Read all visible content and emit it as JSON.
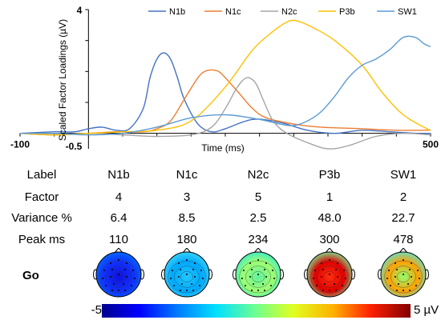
{
  "chart_data": {
    "type": "line",
    "ylabel": "Scaled Factor Loadings (µV)",
    "xlabel": "Time (ms)",
    "xlim": [
      -100,
      500
    ],
    "ylim": [
      -0.5,
      4
    ],
    "y_tick_labels": [
      "4",
      "-0.5"
    ],
    "x_tick_labels": [
      "-100",
      "500"
    ],
    "legend_position": "top",
    "series": [
      {
        "name": "N1b",
        "color": "#4472c4",
        "x": [
          -100,
          -50,
          -20,
          0,
          20,
          40,
          60,
          80,
          90,
          100,
          110,
          120,
          130,
          140,
          160,
          180,
          200,
          240,
          280,
          320,
          360,
          400,
          440,
          480,
          500
        ],
        "y": [
          0.0,
          0.05,
          0.05,
          0.15,
          0.2,
          0.1,
          0.15,
          0.8,
          1.8,
          2.4,
          2.6,
          2.4,
          1.8,
          1.1,
          0.3,
          0.05,
          0.15,
          0.45,
          0.35,
          0.1,
          0.0,
          0.1,
          0.05,
          0.0,
          0.0
        ]
      },
      {
        "name": "N1c",
        "color": "#ed7d31",
        "x": [
          -100,
          -50,
          0,
          40,
          80,
          100,
          120,
          140,
          160,
          170,
          180,
          190,
          200,
          220,
          240,
          260,
          300,
          340,
          400,
          450,
          500
        ],
        "y": [
          0.0,
          -0.05,
          0.0,
          0.05,
          0.05,
          0.15,
          0.4,
          1.1,
          1.8,
          2.0,
          2.05,
          2.0,
          1.8,
          1.3,
          0.8,
          0.5,
          0.3,
          0.2,
          0.15,
          0.1,
          0.1
        ]
      },
      {
        "name": "N2c",
        "color": "#a5a5a5",
        "x": [
          -100,
          -50,
          0,
          50,
          100,
          150,
          180,
          200,
          215,
          225,
          234,
          245,
          255,
          270,
          290,
          320,
          350,
          380,
          420,
          460,
          500
        ],
        "y": [
          0.0,
          -0.05,
          0.0,
          -0.05,
          -0.1,
          -0.05,
          0.2,
          0.8,
          1.4,
          1.7,
          1.8,
          1.6,
          1.1,
          0.4,
          0.0,
          -0.3,
          -0.5,
          -0.4,
          -0.1,
          0.0,
          -0.05
        ]
      },
      {
        "name": "P3b",
        "color": "#ffc000",
        "x": [
          -100,
          -50,
          0,
          50,
          100,
          150,
          200,
          240,
          270,
          290,
          300,
          310,
          330,
          360,
          400,
          430,
          460,
          490,
          500
        ],
        "y": [
          0.0,
          -0.05,
          0.0,
          0.05,
          0.1,
          0.4,
          1.5,
          2.7,
          3.3,
          3.6,
          3.65,
          3.6,
          3.4,
          3.0,
          2.2,
          1.3,
          0.6,
          0.2,
          0.1
        ]
      },
      {
        "name": "SW1",
        "color": "#5b9bd5",
        "x": [
          -100,
          -50,
          0,
          50,
          100,
          150,
          200,
          250,
          280,
          300,
          320,
          340,
          360,
          380,
          400,
          420,
          440,
          460,
          478,
          490,
          500
        ],
        "y": [
          0.0,
          0.0,
          -0.05,
          0.0,
          0.2,
          0.5,
          0.6,
          0.45,
          0.3,
          0.25,
          0.4,
          0.7,
          1.2,
          1.8,
          2.2,
          2.4,
          2.7,
          3.1,
          3.1,
          2.9,
          2.8
        ]
      }
    ]
  },
  "table": {
    "labels": {
      "label": "Label",
      "factor": "Factor",
      "variance": "Variance %",
      "peak": "Peak ms"
    },
    "columns": [
      {
        "label": "N1b",
        "factor": "4",
        "variance": "6.4",
        "peak": "110"
      },
      {
        "label": "N1c",
        "factor": "3",
        "variance": "8.5",
        "peak": "180"
      },
      {
        "label": "N2c",
        "factor": "5",
        "variance": "2.5",
        "peak": "234"
      },
      {
        "label": "P3b",
        "factor": "1",
        "variance": "48.0",
        "peak": "300"
      },
      {
        "label": "SW1",
        "factor": "2",
        "variance": "22.7",
        "peak": "478"
      }
    ]
  },
  "topomaps": {
    "condition_label": "Go",
    "maps": [
      {
        "factor": "N1b",
        "center_color": "#1010e0",
        "edge_color": "#0070ff",
        "accent_color": "#1030ff"
      },
      {
        "factor": "N1c",
        "center_color": "#20c8ff",
        "edge_color": "#40d8ff",
        "accent_color": "#00a8ff"
      },
      {
        "factor": "N2c",
        "center_color": "#60f0a0",
        "edge_color": "#30e8d0",
        "accent_color": "#a0ff70"
      },
      {
        "factor": "P3b",
        "center_color": "#ff3010",
        "edge_color": "#70ffa0",
        "accent_color": "#e00000"
      },
      {
        "factor": "SW1",
        "center_color": "#90ff70",
        "edge_color": "#50e8e0",
        "accent_color": "#ffa000"
      }
    ]
  },
  "colorbar": {
    "min_label": "-5",
    "max_label": "5 µV"
  }
}
